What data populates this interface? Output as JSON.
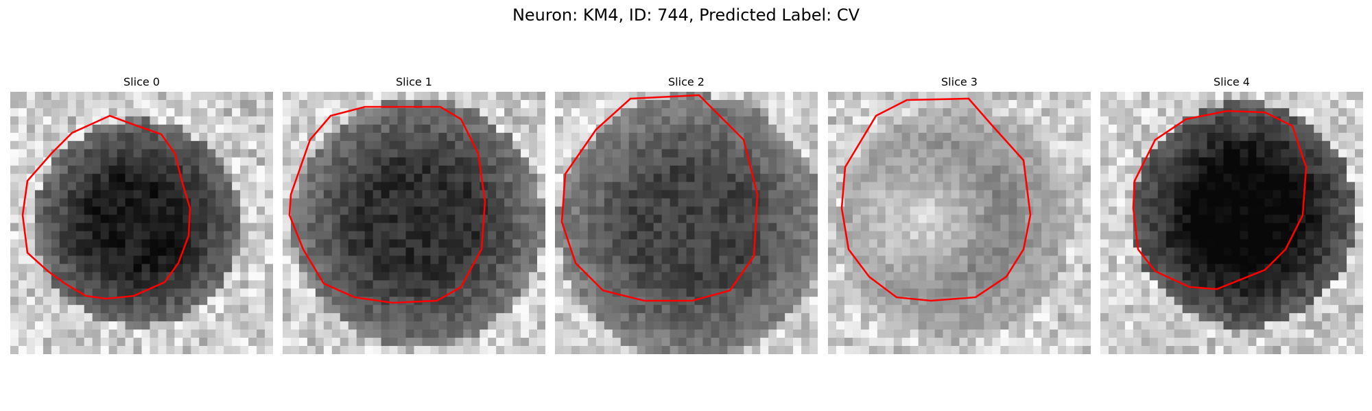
{
  "figure": {
    "title": "Neuron: KM4, ID: 744, Predicted Label: CV"
  },
  "panels": [
    {
      "title": "Slice 0",
      "seed": 11,
      "overlay_color": "#ff0000"
    },
    {
      "title": "Slice 1",
      "seed": 23,
      "overlay_color": "#ff0000"
    },
    {
      "title": "Slice 2",
      "seed": 37,
      "overlay_color": "#ff0000"
    },
    {
      "title": "Slice 3",
      "seed": 53,
      "overlay_color": "#ff0000"
    },
    {
      "title": "Slice 4",
      "seed": 71,
      "overlay_color": "#ff0000"
    }
  ]
}
